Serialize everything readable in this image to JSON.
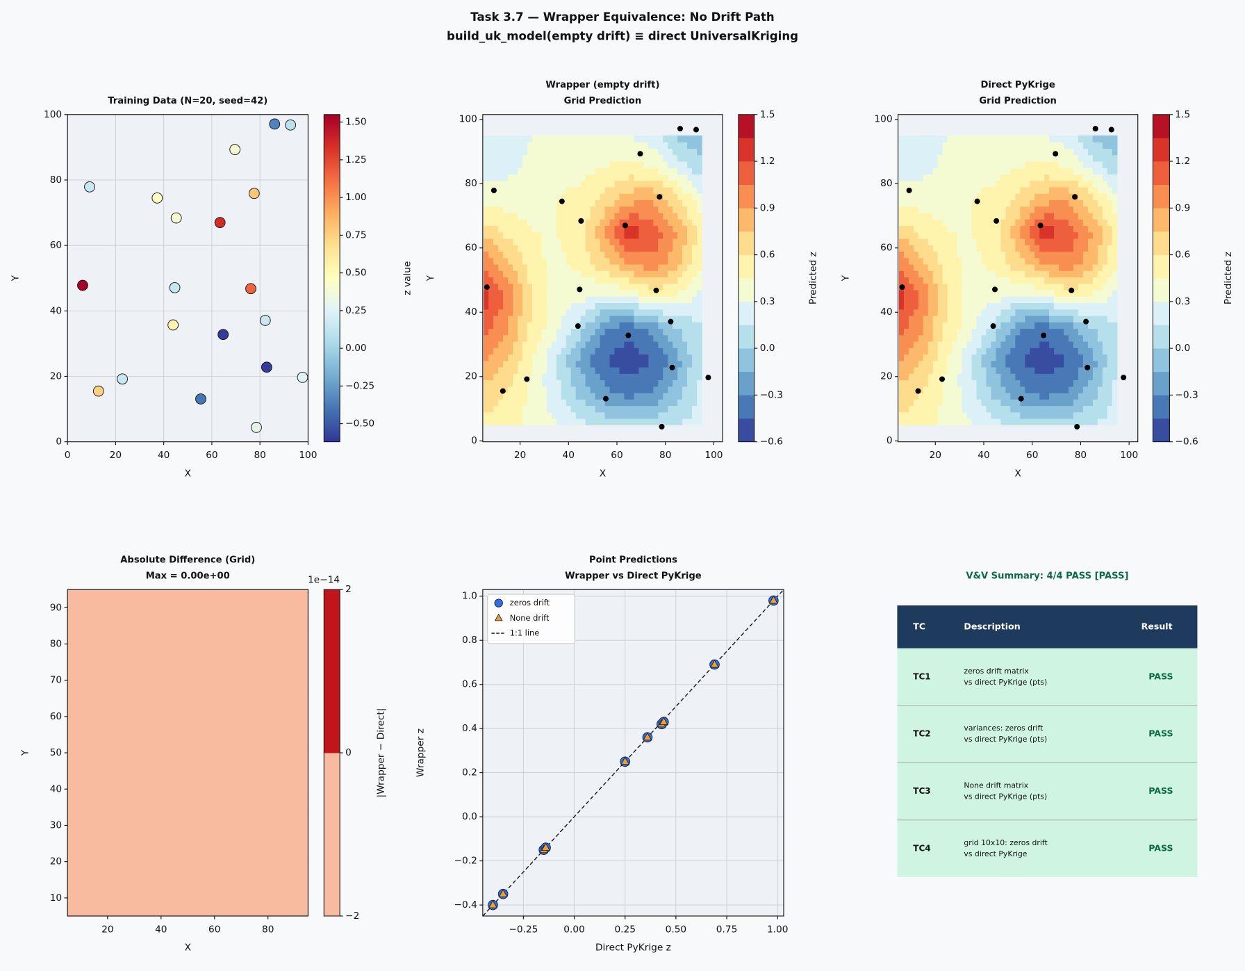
{
  "title": [
    "Task 3.7 — Wrapper Equivalence: No Drift Path",
    "build_uk_model(empty drift) ≡ direct UniversalKriging"
  ],
  "chart_data": [
    {
      "type": "scatter",
      "title": [
        "Training Data (N=20, seed=42)"
      ],
      "xlabel": "X",
      "ylabel": "Y",
      "x": [
        86.1,
        92.7,
        69.6,
        9.2,
        77.6,
        37.3,
        45.2,
        63.4,
        6.3,
        44.6,
        76.2,
        82.2,
        43.9,
        64.7,
        82.8,
        22.8,
        97.7,
        12.9,
        55.4,
        78.5
      ],
      "values": [
        97.1,
        96.8,
        89.3,
        77.9,
        75.9,
        74.5,
        68.4,
        67.0,
        47.8,
        47.1,
        46.8,
        37.1,
        35.7,
        32.8,
        22.8,
        19.2,
        19.7,
        15.5,
        13.1,
        4.4
      ],
      "z": [
        -0.35,
        0.1,
        0.4,
        0.15,
        0.8,
        0.45,
        0.4,
        1.35,
        1.55,
        0.15,
        1.15,
        0.15,
        0.55,
        -0.6,
        -0.6,
        0.15,
        0.25,
        0.75,
        -0.4,
        0.3
      ],
      "colormap": "RdYlBu_r",
      "zlim": [
        -0.62,
        1.55
      ],
      "zticks": [
        {
          "value": -0.5,
          "label": "−0.50"
        },
        {
          "value": -0.25,
          "label": "−0.25"
        },
        {
          "value": 0,
          "label": "0.00"
        },
        0.25,
        {
          "value": 0.5,
          "label": "0.50"
        },
        0.75,
        {
          "value": 1,
          "label": "1.00"
        },
        1.25,
        {
          "value": 1.5,
          "label": "1.50"
        }
      ],
      "zlabel": "z value",
      "xlim": [
        0,
        100
      ],
      "ylim": [
        0,
        100
      ],
      "xticks": [
        0,
        20,
        40,
        60,
        80,
        100
      ],
      "yticks": [
        0,
        20,
        40,
        60,
        80,
        100
      ],
      "grid": true
    },
    {
      "type": "contour",
      "title": [
        "Wrapper (empty drift)",
        "Grid Prediction"
      ],
      "xlabel": "X",
      "ylabel": "Y",
      "grid_x": [
        5,
        15,
        25,
        35,
        45,
        55,
        65,
        75,
        85,
        95
      ],
      "grid_y": [
        5,
        15,
        25,
        35,
        45,
        55,
        65,
        75,
        85,
        95
      ],
      "z": [
        [
          0.55,
          0.5,
          0.4,
          0.3,
          0.2,
          0.1,
          0.05,
          0.1,
          0.15,
          0.2
        ],
        [
          0.7,
          0.6,
          0.4,
          0.2,
          -0.05,
          -0.25,
          -0.35,
          -0.3,
          -0.05,
          0.2
        ],
        [
          0.9,
          0.75,
          0.45,
          0.15,
          -0.2,
          -0.45,
          -0.55,
          -0.45,
          -0.2,
          0.15
        ],
        [
          1.1,
          0.9,
          0.55,
          0.35,
          0.05,
          -0.3,
          -0.4,
          -0.25,
          0.0,
          0.15
        ],
        [
          1.3,
          1.0,
          0.6,
          0.35,
          0.35,
          0.25,
          0.3,
          0.5,
          0.4,
          0.25
        ],
        [
          1.05,
          0.8,
          0.5,
          0.4,
          0.5,
          0.7,
          0.9,
          1.0,
          0.8,
          0.45
        ],
        [
          0.7,
          0.55,
          0.45,
          0.45,
          0.55,
          0.9,
          1.3,
          1.15,
          0.9,
          0.5
        ],
        [
          0.4,
          0.4,
          0.4,
          0.45,
          0.5,
          0.65,
          0.85,
          0.9,
          0.65,
          0.35
        ],
        [
          0.2,
          0.25,
          0.35,
          0.4,
          0.4,
          0.45,
          0.5,
          0.45,
          0.25,
          0.05
        ],
        [
          0.15,
          0.15,
          0.3,
          0.35,
          0.35,
          0.35,
          0.3,
          0.2,
          -0.05,
          -0.1
        ]
      ],
      "levels": [
        -0.6,
        -0.45,
        -0.3,
        -0.15,
        0,
        0.15,
        0.3,
        0.45,
        0.6,
        0.75,
        0.9,
        1.05,
        1.2,
        1.35,
        1.5
      ],
      "colormap": "RdYlBu_r",
      "zticks": [
        {
          "value": -0.6,
          "label": "−0.6"
        },
        {
          "value": -0.3,
          "label": "−0.3"
        },
        {
          "value": 0,
          "label": "0.0"
        },
        0.3,
        0.6,
        0.9,
        1.2,
        1.5
      ],
      "zlabel": "Predicted z",
      "xlim": [
        4.6,
        103.6
      ],
      "ylim": [
        -0.3,
        101.5
      ],
      "xticks": [
        20,
        40,
        60,
        80,
        100
      ],
      "yticks": [
        0,
        20,
        40,
        60,
        80,
        100
      ],
      "grid": false
    },
    {
      "type": "contour",
      "title": [
        "Direct PyKrige",
        "Grid Prediction"
      ],
      "xlabel": "X",
      "ylabel": "Y",
      "grid_x": [
        5,
        15,
        25,
        35,
        45,
        55,
        65,
        75,
        85,
        95
      ],
      "grid_y": [
        5,
        15,
        25,
        35,
        45,
        55,
        65,
        75,
        85,
        95
      ],
      "z": [
        [
          0.55,
          0.5,
          0.4,
          0.3,
          0.2,
          0.1,
          0.05,
          0.1,
          0.15,
          0.2
        ],
        [
          0.7,
          0.6,
          0.4,
          0.2,
          -0.05,
          -0.25,
          -0.35,
          -0.3,
          -0.05,
          0.2
        ],
        [
          0.9,
          0.75,
          0.45,
          0.15,
          -0.2,
          -0.45,
          -0.55,
          -0.45,
          -0.2,
          0.15
        ],
        [
          1.1,
          0.9,
          0.55,
          0.35,
          0.05,
          -0.3,
          -0.4,
          -0.25,
          0.0,
          0.15
        ],
        [
          1.3,
          1.0,
          0.6,
          0.35,
          0.35,
          0.25,
          0.3,
          0.5,
          0.4,
          0.25
        ],
        [
          1.05,
          0.8,
          0.5,
          0.4,
          0.5,
          0.7,
          0.9,
          1.0,
          0.8,
          0.45
        ],
        [
          0.7,
          0.55,
          0.45,
          0.45,
          0.55,
          0.9,
          1.3,
          1.15,
          0.9,
          0.5
        ],
        [
          0.4,
          0.4,
          0.4,
          0.45,
          0.5,
          0.65,
          0.85,
          0.9,
          0.65,
          0.35
        ],
        [
          0.2,
          0.25,
          0.35,
          0.4,
          0.4,
          0.45,
          0.5,
          0.45,
          0.25,
          0.05
        ],
        [
          0.15,
          0.15,
          0.3,
          0.35,
          0.35,
          0.35,
          0.3,
          0.2,
          -0.05,
          -0.1
        ]
      ],
      "levels": [
        -0.6,
        -0.45,
        -0.3,
        -0.15,
        0,
        0.15,
        0.3,
        0.45,
        0.6,
        0.75,
        0.9,
        1.05,
        1.2,
        1.35,
        1.5
      ],
      "colormap": "RdYlBu_r",
      "zticks": [
        {
          "value": -0.6,
          "label": "−0.6"
        },
        {
          "value": -0.3,
          "label": "−0.3"
        },
        {
          "value": 0,
          "label": "0.0"
        },
        0.3,
        0.6,
        0.9,
        1.2,
        1.5
      ],
      "zlabel": "Predicted z",
      "xlim": [
        4.6,
        103.6
      ],
      "ylim": [
        -0.3,
        101.5
      ],
      "xticks": [
        20,
        40,
        60,
        80,
        100
      ],
      "yticks": [
        0,
        20,
        40,
        60,
        80,
        100
      ],
      "grid": false
    },
    {
      "type": "contour",
      "title": [
        "Absolute Difference (Grid)",
        "Max = 0.00e+00"
      ],
      "xlabel": "X",
      "ylabel": "Y",
      "grid_x": [
        5,
        15,
        25,
        35,
        45,
        55,
        65,
        75,
        85,
        95
      ],
      "grid_y": [
        5,
        15,
        25,
        35,
        45,
        55,
        65,
        75,
        85,
        95
      ],
      "z": [
        [
          0,
          0,
          0,
          0,
          0,
          0,
          0,
          0,
          0,
          0
        ],
        [
          0,
          0,
          0,
          0,
          0,
          0,
          0,
          0,
          0,
          0
        ],
        [
          0,
          0,
          0,
          0,
          0,
          0,
          0,
          0,
          0,
          0
        ],
        [
          0,
          0,
          0,
          0,
          0,
          0,
          0,
          0,
          0,
          0
        ],
        [
          0,
          0,
          0,
          0,
          0,
          0,
          0,
          0,
          0,
          0
        ],
        [
          0,
          0,
          0,
          0,
          0,
          0,
          0,
          0,
          0,
          0
        ],
        [
          0,
          0,
          0,
          0,
          0,
          0,
          0,
          0,
          0,
          0
        ],
        [
          0,
          0,
          0,
          0,
          0,
          0,
          0,
          0,
          0,
          0
        ],
        [
          0,
          0,
          0,
          0,
          0,
          0,
          0,
          0,
          0,
          0
        ],
        [
          0,
          0,
          0,
          0,
          0,
          0,
          0,
          0,
          0,
          0
        ]
      ],
      "levels": [
        -2,
        0,
        2
      ],
      "colors": [
        "#f9bba0",
        "#c1141b"
      ],
      "zticks": [
        {
          "value": -2,
          "label": "−2"
        },
        0,
        2
      ],
      "zoffset": "1e−14",
      "zlabel": "|Wrapper − Direct|",
      "xlim": [
        5,
        95
      ],
      "ylim": [
        5,
        95
      ],
      "xticks": [
        20,
        40,
        60,
        80
      ],
      "yticks": [
        10,
        20,
        30,
        40,
        50,
        60,
        70,
        80,
        90
      ],
      "grid": false
    },
    {
      "type": "scatter",
      "title": [
        "Point Predictions",
        "Wrapper vs Direct PyKrige"
      ],
      "xlabel": "Direct PyKrige z",
      "ylabel": "Wrapper z",
      "x": [
        -0.4,
        -0.35,
        -0.15,
        -0.14,
        0.25,
        0.36,
        0.43,
        0.44,
        0.69,
        0.98
      ],
      "series": [
        {
          "name": "zeros drift",
          "color": "#2f6fe4",
          "marker": "circle",
          "values": [
            -0.4,
            -0.35,
            -0.15,
            -0.14,
            0.25,
            0.36,
            0.42,
            0.43,
            0.69,
            0.98
          ]
        },
        {
          "name": "None drift",
          "color": "#f0a02a",
          "marker": "triangle",
          "values": [
            -0.4,
            -0.35,
            -0.15,
            -0.14,
            0.25,
            0.36,
            0.42,
            0.43,
            0.69,
            0.98
          ]
        }
      ],
      "line_label": "1:1 line",
      "legend": "upper left",
      "xlim": [
        -0.45,
        1.03
      ],
      "ylim": [
        -0.45,
        1.03
      ],
      "xticks": [
        {
          "value": -0.25,
          "label": "−0.25"
        },
        {
          "value": 0,
          "label": "0.00"
        },
        0.25,
        {
          "value": 0.5,
          "label": "0.50"
        },
        0.75,
        {
          "value": 1,
          "label": "1.00"
        }
      ],
      "yticks": [
        {
          "value": -0.4,
          "label": "−0.4"
        },
        {
          "value": -0.2,
          "label": "−0.2"
        },
        {
          "value": 0,
          "label": "0.0"
        },
        0.2,
        0.4,
        0.6,
        0.8,
        {
          "value": 1,
          "label": "1.0"
        }
      ],
      "grid": true
    }
  ],
  "table": {
    "title": "V&V Summary: 4/4 PASS [PASS]",
    "header": [
      "TC",
      "Description",
      "Result"
    ],
    "rows": [
      [
        "TC1",
        [
          "zeros drift matrix",
          "vs direct PyKrige (pts)"
        ],
        "PASS"
      ],
      [
        "TC2",
        [
          "variances: zeros drift",
          "vs direct PyKrige (pts)"
        ],
        "PASS"
      ],
      [
        "TC3",
        [
          "None drift matrix",
          "vs direct PyKrige (pts)"
        ],
        "PASS"
      ],
      [
        "TC4",
        [
          "grid 10x10: zeros drift",
          "vs direct PyKrige"
        ],
        "PASS"
      ]
    ]
  }
}
